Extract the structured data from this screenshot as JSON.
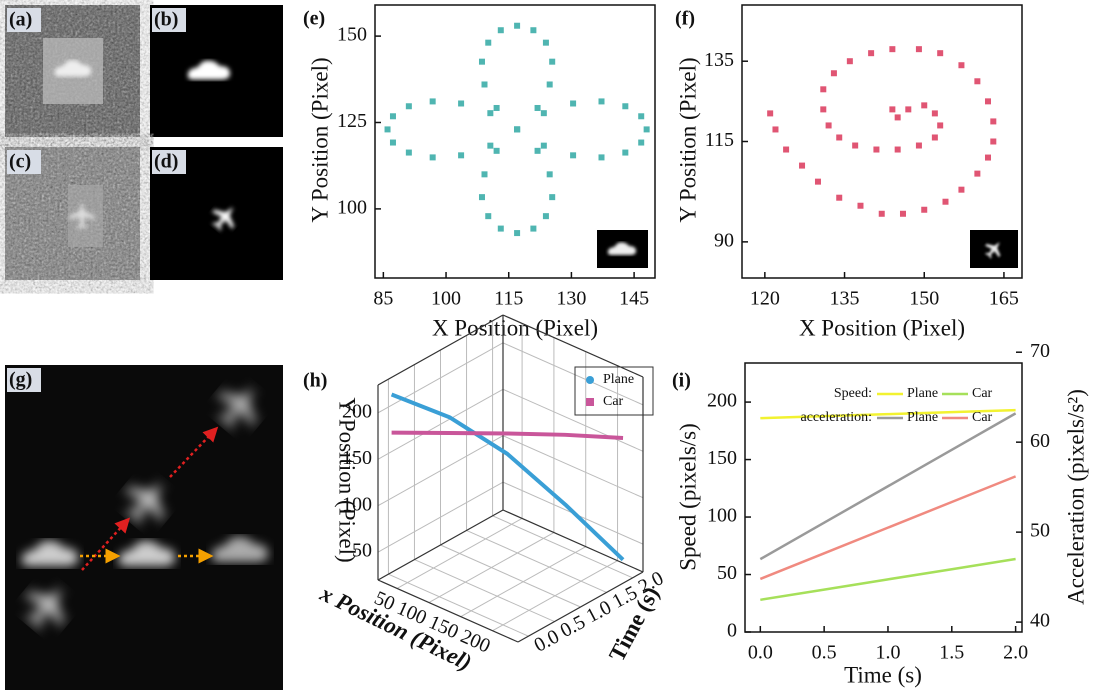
{
  "image_panels": [
    {
      "label": "(a)"
    },
    {
      "label": "(b)"
    },
    {
      "label": "(c)"
    },
    {
      "label": "(d)"
    },
    {
      "label": "(g)"
    }
  ],
  "chart_data": [
    {
      "label": "(e)",
      "type": "scatter",
      "x_label": "X Position (Pixel)",
      "y_label": "Y Position (Pixel)",
      "color": "#4fb5b1",
      "x": [
        148,
        146.7,
        142.9,
        137.2,
        130.4,
        123.4,
        117,
        112.1,
        109.2,
        108.6,
        110.1,
        113.1,
        117,
        120.9,
        123.9,
        125.4,
        124.8,
        121.9,
        117,
        110.6,
        103.6,
        96.8,
        91.1,
        87.3,
        86,
        87.3,
        91.1,
        96.8,
        103.6,
        110.6,
        117,
        121.9,
        124.8,
        125.4,
        123.9,
        120.9,
        117,
        113.1,
        110.1,
        108.6,
        109.2,
        112.1,
        117,
        123.4,
        130.4,
        137.2,
        142.9,
        146.7
      ],
      "y": [
        123,
        126.8,
        129.7,
        131.1,
        130.5,
        127.7,
        123,
        116.8,
        110,
        103.4,
        97.9,
        94.3,
        93,
        94.3,
        97.9,
        103.4,
        110,
        116.8,
        123,
        127.7,
        130.5,
        131.1,
        129.7,
        126.8,
        123,
        119.2,
        116.3,
        114.9,
        115.5,
        118.3,
        123,
        129.2,
        136,
        142.6,
        148.1,
        151.7,
        153,
        151.7,
        148.1,
        142.6,
        136,
        129.2,
        123,
        118.3,
        115.5,
        114.9,
        116.3,
        119.2
      ],
      "xlim": [
        83,
        150
      ],
      "ylim": [
        80,
        159
      ],
      "xticks": [
        85,
        100,
        115,
        130,
        145
      ],
      "yticks": [
        100,
        125,
        150
      ]
    },
    {
      "label": "(f)",
      "type": "scatter",
      "x_label": "X Position (Pixel)",
      "y_label": "Y Position (Pixel)",
      "color": "#e05573",
      "x": [
        121,
        122,
        124,
        127,
        130,
        134,
        138,
        142,
        146,
        150,
        154,
        157,
        160,
        162,
        163,
        163,
        162,
        160,
        157,
        153,
        149,
        144,
        140,
        136,
        133,
        131,
        131,
        132,
        134,
        137,
        141,
        145,
        149,
        152,
        153,
        152,
        150,
        147,
        145,
        144
      ],
      "y": [
        122,
        118,
        113,
        109,
        105,
        101,
        99,
        97,
        97,
        98,
        100,
        103,
        107,
        111,
        115,
        120,
        125,
        130,
        134,
        137,
        138,
        138,
        137,
        135,
        132,
        128,
        123,
        119,
        116,
        114,
        113,
        113,
        114,
        116,
        119,
        122,
        124,
        123,
        121,
        123
      ],
      "xlim": [
        115.7,
        168.4
      ],
      "ylim": [
        81,
        149
      ],
      "xticks": [
        120,
        135,
        150,
        165
      ],
      "yticks": [
        90,
        115,
        135
      ]
    },
    {
      "label": "(h)",
      "type": "line3d",
      "x_label": "x Position (Pixel)",
      "y_label": "Y Position (Pixel)",
      "t_label": "Time (s)",
      "xlim": [
        20,
        240
      ],
      "xticks": [
        50,
        100,
        150,
        200
      ],
      "ylim": [
        20,
        230
      ],
      "yticks": [
        50,
        100,
        150,
        200
      ],
      "tlim": [
        -0.2,
        2.2
      ],
      "tticks": [
        {
          "value": 0,
          "label": "0.0"
        },
        {
          "value": 0.5,
          "label": "0.5"
        },
        {
          "value": 1,
          "label": "1.0"
        },
        {
          "value": 1.5,
          "label": "1.5"
        },
        {
          "value": 2,
          "label": "2.0"
        }
      ],
      "series": [
        {
          "name": "Plane",
          "color": "#3a9fd6",
          "time": [
            0,
            0.5,
            1,
            1.5,
            2
          ],
          "x": [
            25,
            75,
            125,
            175,
            225
          ],
          "values": [
            215,
            190,
            150,
            95,
            35
          ]
        },
        {
          "name": "Car",
          "color": "#c9569a",
          "time": [
            0,
            0.5,
            1,
            1.5,
            2
          ],
          "x": [
            25,
            75,
            125,
            175,
            225
          ],
          "values": [
            174,
            173,
            172,
            170,
            166
          ]
        }
      ]
    },
    {
      "label": "(i)",
      "type": "line",
      "x_label": "Time (s)",
      "y_label": "Speed (pixels/s)",
      "y2_label": "Acceleration (pixels/s²)",
      "x": [
        0,
        0.5,
        1,
        1.5,
        2
      ],
      "xlim": [
        -0.12,
        2.05
      ],
      "xticks": [
        {
          "value": 0,
          "label": "0.0"
        },
        {
          "value": 0.5,
          "label": "0.5"
        },
        {
          "value": 1,
          "label": "1.0"
        },
        {
          "value": 1.5,
          "label": "1.5"
        },
        {
          "value": 2,
          "label": "2.0"
        }
      ],
      "ylim": [
        0,
        234
      ],
      "yticks": [
        0,
        50,
        100,
        150,
        200
      ],
      "y2lim": [
        38.9,
        68.8
      ],
      "y2ticks": [
        40,
        50,
        60,
        70
      ],
      "series_groups": [
        {
          "name": "Speed:",
          "series": [
            {
              "name": "Plane",
              "color": "#f2f230",
              "values": [
                186,
                187.75,
                189.5,
                191.25,
                193
              ]
            },
            {
              "name": "Car",
              "color": "#a6e05a",
              "values": [
                28,
                36.9,
                45.8,
                54.6,
                63.5
              ]
            }
          ]
        },
        {
          "name": "acceleration:",
          "series": [
            {
              "name": "Plane",
              "axis": "y2",
              "color": "#9a9a9a",
              "values": [
                47,
                51.05,
                55.1,
                59.15,
                63.2
              ]
            },
            {
              "name": "Car",
              "axis": "y2",
              "color": "#f08a80",
              "values": [
                44.8,
                47.65,
                50.5,
                53.35,
                56.2
              ]
            }
          ]
        }
      ]
    }
  ]
}
